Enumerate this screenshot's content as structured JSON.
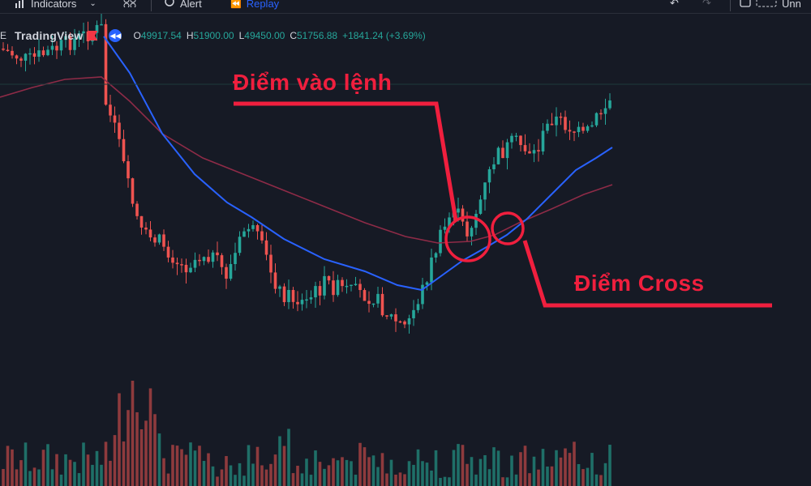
{
  "toolbar": {
    "indicators_label": "Indicators",
    "alert_label": "Alert",
    "replay_label": "Replay",
    "right_label": "Unn"
  },
  "header": {
    "symbol_partial": "E",
    "brand": "TradingView",
    "ohlc": {
      "open_label": "O",
      "open": "49917.54",
      "high_label": "H",
      "high": "51900.00",
      "low_label": "L",
      "low": "49450.00",
      "close_label": "C",
      "close": "51756.88",
      "change": "+1841.24 (+3.69%)"
    }
  },
  "annotations": {
    "entry_label": "Điểm vào lệnh",
    "cross_label": "Điểm Cross"
  },
  "colors": {
    "background": "#161a25",
    "up": "#26a69a",
    "down": "#ef5350",
    "ma_fast": "#2962ff",
    "ma_slow": "#8e2b47",
    "annotation": "#f01f3e"
  },
  "chart_data": {
    "type": "candlestick",
    "price_range": [
      46000,
      55000
    ],
    "series": [
      {
        "name": "",
        "kind": "ohlc",
        "values": []
      },
      {
        "name": "",
        "kind": "line",
        "values": []
      },
      {
        "name": "",
        "kind": "line",
        "values": []
      },
      {
        "name": "",
        "kind": "bar",
        "values": []
      }
    ],
    "grid": false,
    "legend": "none"
  }
}
